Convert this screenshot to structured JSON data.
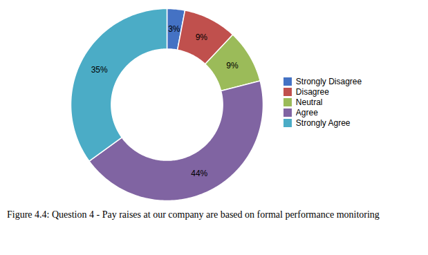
{
  "chart_data": {
    "type": "pie",
    "categories": [
      "Strongly Disagree",
      "Disagree",
      "Neutral",
      "Agree",
      "Strongly Agree"
    ],
    "values": [
      3,
      9,
      9,
      44,
      35
    ],
    "value_labels": [
      "3%",
      "9%",
      "9%",
      "44%",
      "35%"
    ],
    "colors": [
      "#4472C4",
      "#C0504D",
      "#9BBB59",
      "#8064A2",
      "#4BACC6"
    ],
    "data_labels": true,
    "legend": "right",
    "caption": "Figure 4.4: Question 4 - Pay raises at our company are based on formal performance monitoring"
  }
}
